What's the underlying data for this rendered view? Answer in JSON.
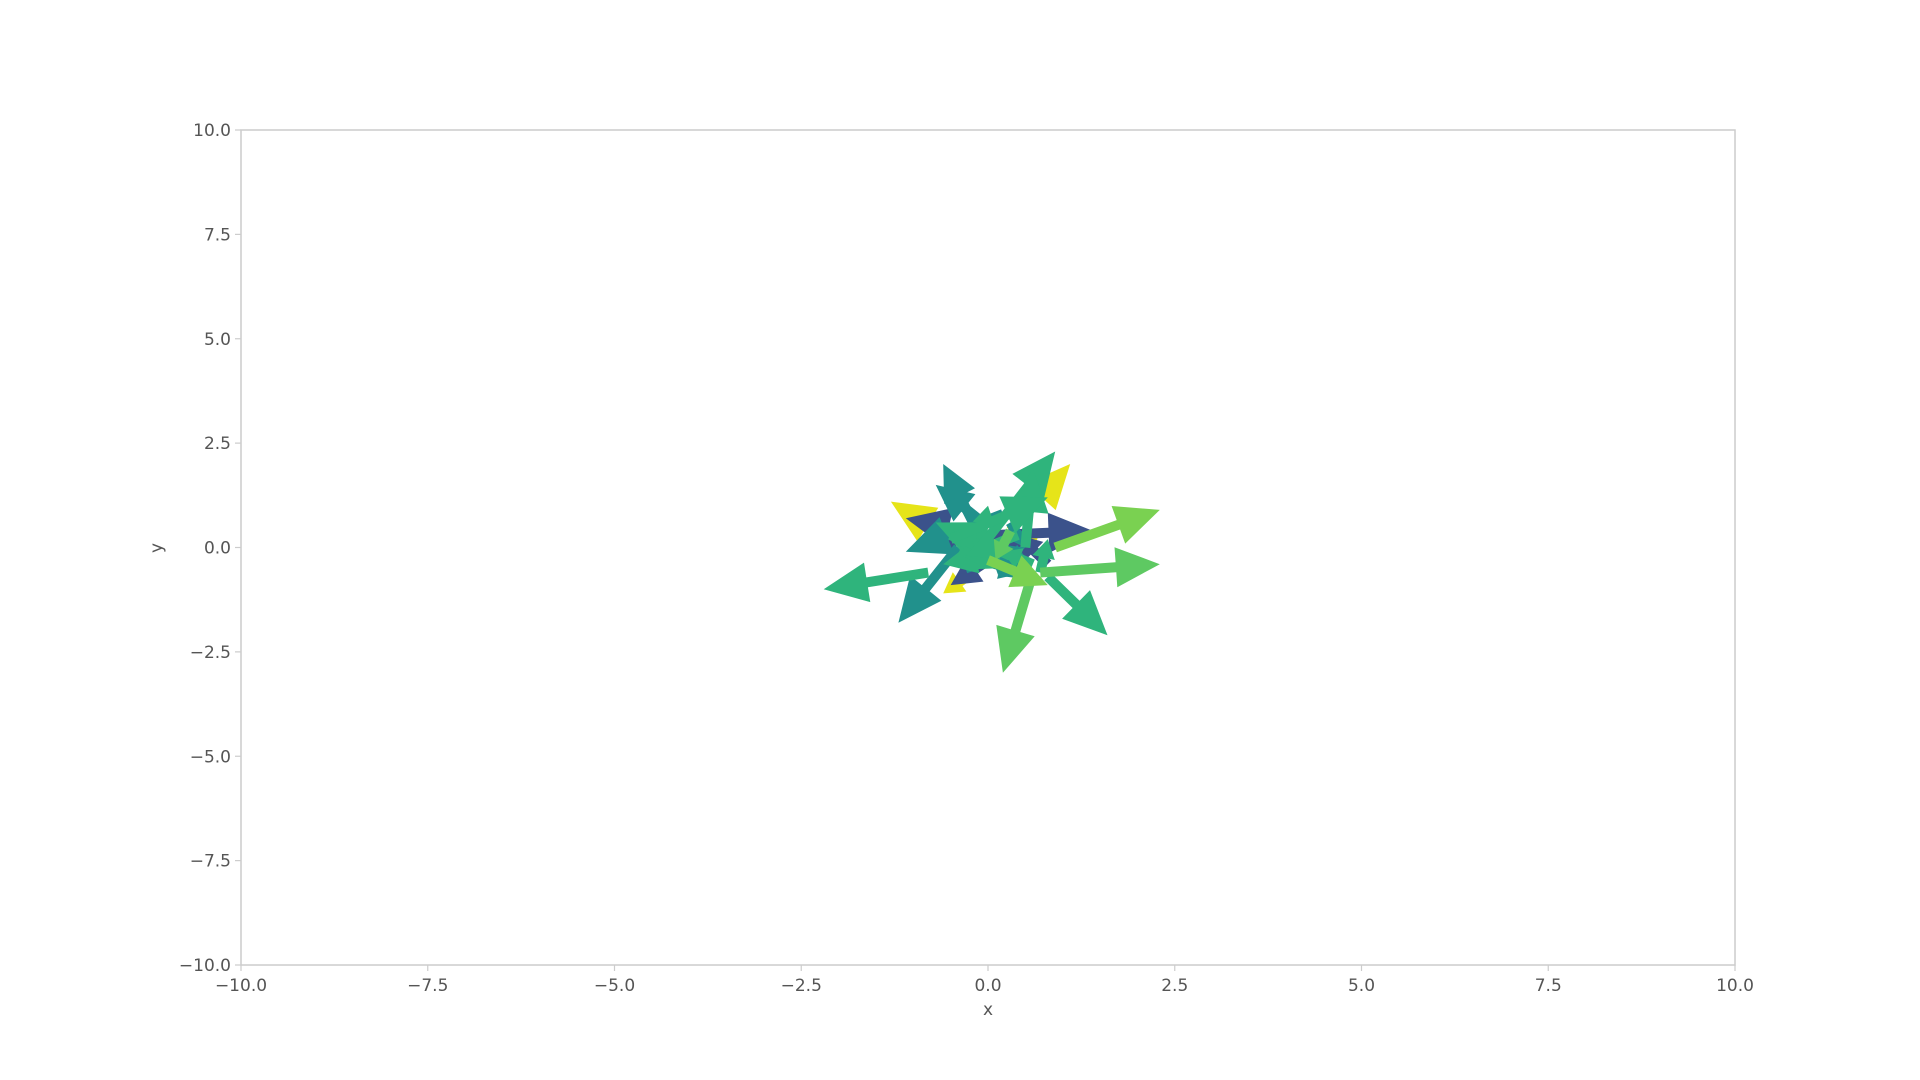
{
  "chart_data": {
    "type": "quiver",
    "title": "",
    "xlabel": "x",
    "ylabel": "y",
    "xlim": [
      -10,
      10
    ],
    "ylim": [
      -10,
      10
    ],
    "grid": false,
    "x_ticks": [
      -10,
      -7.5,
      -5,
      -2.5,
      0,
      2.5,
      5,
      7.5,
      10
    ],
    "y_ticks": [
      -10,
      -7.5,
      -5,
      -2.5,
      0,
      2.5,
      5,
      7.5,
      10
    ],
    "x_tick_labels": [
      "−10.0",
      "−7.5",
      "−5.0",
      "−2.5",
      "0.0",
      "2.5",
      "5.0",
      "7.5",
      "10.0"
    ],
    "y_tick_labels": [
      "−10.0",
      "−7.5",
      "−5.0",
      "−2.5",
      "0.0",
      "2.5",
      "5.0",
      "7.5",
      "10.0"
    ],
    "colormap": "viridis",
    "colors": {
      "navy": "#3b528b",
      "teal": "#21918c",
      "green": "#2fb47c",
      "lightgreen": "#5ec962",
      "lime": "#7ad151",
      "yellow": "#e6e419",
      "axis": "#cccccc",
      "text": "#555555"
    },
    "arrows": [
      {
        "x": -0.4,
        "y": 0.1,
        "u": -0.9,
        "v": 1.0,
        "c": "yellow"
      },
      {
        "x": 0.3,
        "y": 0.4,
        "u": 0.8,
        "v": 1.6,
        "c": "yellow"
      },
      {
        "x": -0.2,
        "y": -0.6,
        "u": -0.4,
        "v": -0.5,
        "c": "yellow"
      },
      {
        "x": 0.3,
        "y": -0.2,
        "u": 0.4,
        "v": 0.6,
        "c": "yellow"
      },
      {
        "x": 0.2,
        "y": 0.2,
        "u": -1.3,
        "v": 0.5,
        "c": "navy"
      },
      {
        "x": 0.1,
        "y": 0.3,
        "u": 1.3,
        "v": 0.1,
        "c": "navy"
      },
      {
        "x": 0.1,
        "y": -0.2,
        "u": -0.6,
        "v": -0.7,
        "c": "navy"
      },
      {
        "x": -0.1,
        "y": 0.1,
        "u": -0.7,
        "v": 0.2,
        "c": "navy"
      },
      {
        "x": 0.8,
        "y": -0.4,
        "u": -0.4,
        "v": 0.7,
        "c": "navy"
      },
      {
        "x": -0.1,
        "y": 0.2,
        "u": 0.8,
        "v": -0.3,
        "c": "navy"
      },
      {
        "x": 0.0,
        "y": 0.5,
        "u": -0.7,
        "v": 1.0,
        "c": "teal"
      },
      {
        "x": -0.2,
        "y": 0.6,
        "u": -0.4,
        "v": 1.4,
        "c": "teal"
      },
      {
        "x": -0.4,
        "y": 0.0,
        "u": -0.8,
        "v": -1.8,
        "c": "teal"
      },
      {
        "x": 0.3,
        "y": 0.6,
        "u": 0.2,
        "v": -0.6,
        "c": "teal"
      },
      {
        "x": 0.2,
        "y": 0.8,
        "u": -1.3,
        "v": -0.9,
        "c": "teal"
      },
      {
        "x": -0.1,
        "y": 0.1,
        "u": 0.8,
        "v": -0.9,
        "c": "teal"
      },
      {
        "x": -0.3,
        "y": -0.5,
        "u": 0.8,
        "v": 0.5,
        "c": "teal"
      },
      {
        "x": -0.1,
        "y": -0.3,
        "u": 0.6,
        "v": -0.3,
        "c": "teal"
      },
      {
        "x": -0.8,
        "y": -0.6,
        "u": -1.4,
        "v": -0.4,
        "c": "green"
      },
      {
        "x": 0.8,
        "y": -0.7,
        "u": 0.8,
        "v": -1.4,
        "c": "green"
      },
      {
        "x": -0.1,
        "y": 0.0,
        "u": 1.0,
        "v": 2.3,
        "c": "green"
      },
      {
        "x": 0.3,
        "y": -0.2,
        "u": -1.0,
        "v": 0.8,
        "c": "green"
      },
      {
        "x": -0.5,
        "y": 0.3,
        "u": 0.4,
        "v": -0.4,
        "c": "green"
      },
      {
        "x": 0.5,
        "y": 0.0,
        "u": 0.1,
        "v": 1.9,
        "c": "green"
      },
      {
        "x": 0.2,
        "y": -0.1,
        "u": -0.8,
        "v": -0.3,
        "c": "green"
      },
      {
        "x": -0.1,
        "y": 0.2,
        "u": 0.1,
        "v": 0.8,
        "c": "green"
      },
      {
        "x": -0.3,
        "y": -0.1,
        "u": 0.4,
        "v": -0.4,
        "c": "green"
      },
      {
        "x": 0.4,
        "y": 0.3,
        "u": -0.7,
        "v": -0.5,
        "c": "green"
      },
      {
        "x": 0.6,
        "y": -0.4,
        "u": -0.4,
        "v": 0.3,
        "c": "green"
      },
      {
        "x": -0.5,
        "y": 0.2,
        "u": 1.3,
        "v": 1.0,
        "c": "green"
      },
      {
        "x": 0.7,
        "y": -0.6,
        "u": 0.1,
        "v": 0.8,
        "c": "green"
      },
      {
        "x": 0.7,
        "y": -0.6,
        "u": 1.6,
        "v": 0.2,
        "c": "lightgreen"
      },
      {
        "x": 0.6,
        "y": -0.6,
        "u": -0.4,
        "v": -2.4,
        "c": "lightgreen"
      },
      {
        "x": 0.3,
        "y": 0.4,
        "u": -0.2,
        "v": -0.7,
        "c": "lightgreen"
      },
      {
        "x": 0.9,
        "y": 0.0,
        "u": 1.4,
        "v": 0.9,
        "c": "lime"
      },
      {
        "x": 0.0,
        "y": -0.3,
        "u": 0.8,
        "v": -0.6,
        "c": "lime"
      }
    ]
  }
}
